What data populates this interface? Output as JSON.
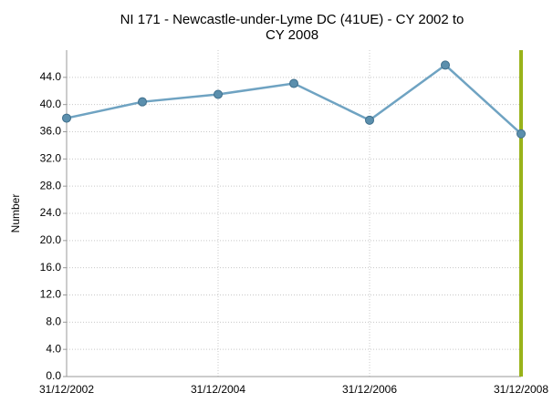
{
  "chart_data": {
    "type": "line",
    "title": [
      "NI 171 - Newcastle-under-Lyme DC (41UE) - CY 2002 to",
      "CY 2008"
    ],
    "ylabel": "Number",
    "categories": [
      "31/12/2002",
      null,
      "31/12/2004",
      null,
      "31/12/2006",
      null,
      "31/12/2008"
    ],
    "series": [
      {
        "name": "NI 171",
        "color": "#6fa3c2",
        "values": [
          38.0,
          40.4,
          41.5,
          43.1,
          37.7,
          45.8,
          35.7
        ]
      }
    ],
    "ylim": [
      0,
      48
    ],
    "yticks": [
      {
        "value": 0,
        "label": "0.0"
      },
      {
        "value": 4,
        "label": "4.0"
      },
      {
        "value": 8,
        "label": "8.0"
      },
      {
        "value": 12,
        "label": "12.0"
      },
      {
        "value": 16,
        "label": "16.0"
      },
      {
        "value": 20,
        "label": "20.0"
      },
      {
        "value": 24,
        "label": "24.0"
      },
      {
        "value": 28,
        "label": "28.0"
      },
      {
        "value": 32,
        "label": "32.0"
      },
      {
        "value": 36,
        "label": "36.0"
      },
      {
        "value": 40,
        "label": "40.0"
      },
      {
        "value": 44,
        "label": "44.0"
      }
    ],
    "grid": true,
    "current_marker_color": "#99b31a"
  }
}
